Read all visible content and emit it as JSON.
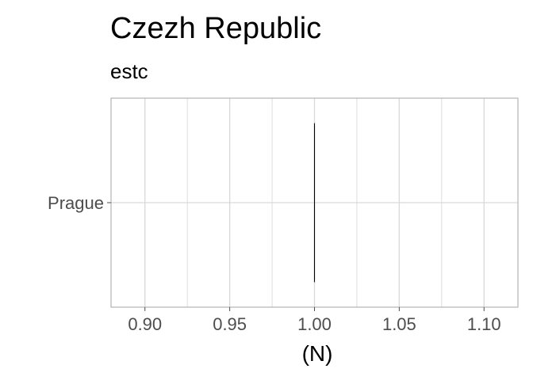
{
  "chart_data": {
    "type": "bar",
    "title": "Czezh Republic",
    "subtitle": "estc",
    "xlabel": "(N)",
    "ylabel": "",
    "categories": [
      "Prague"
    ],
    "values": [
      1
    ],
    "xlim": [
      0.88,
      1.12
    ],
    "x_ticks": [
      0.9,
      0.95,
      1.0,
      1.05,
      1.1
    ],
    "x_tick_labels": [
      "0.90",
      "0.95",
      "1.00",
      "1.05",
      "1.10"
    ],
    "grid": true,
    "bar_color": "#000000",
    "grid_color": "#d9d9d9",
    "panel_border_color": "#b3b3b3"
  }
}
